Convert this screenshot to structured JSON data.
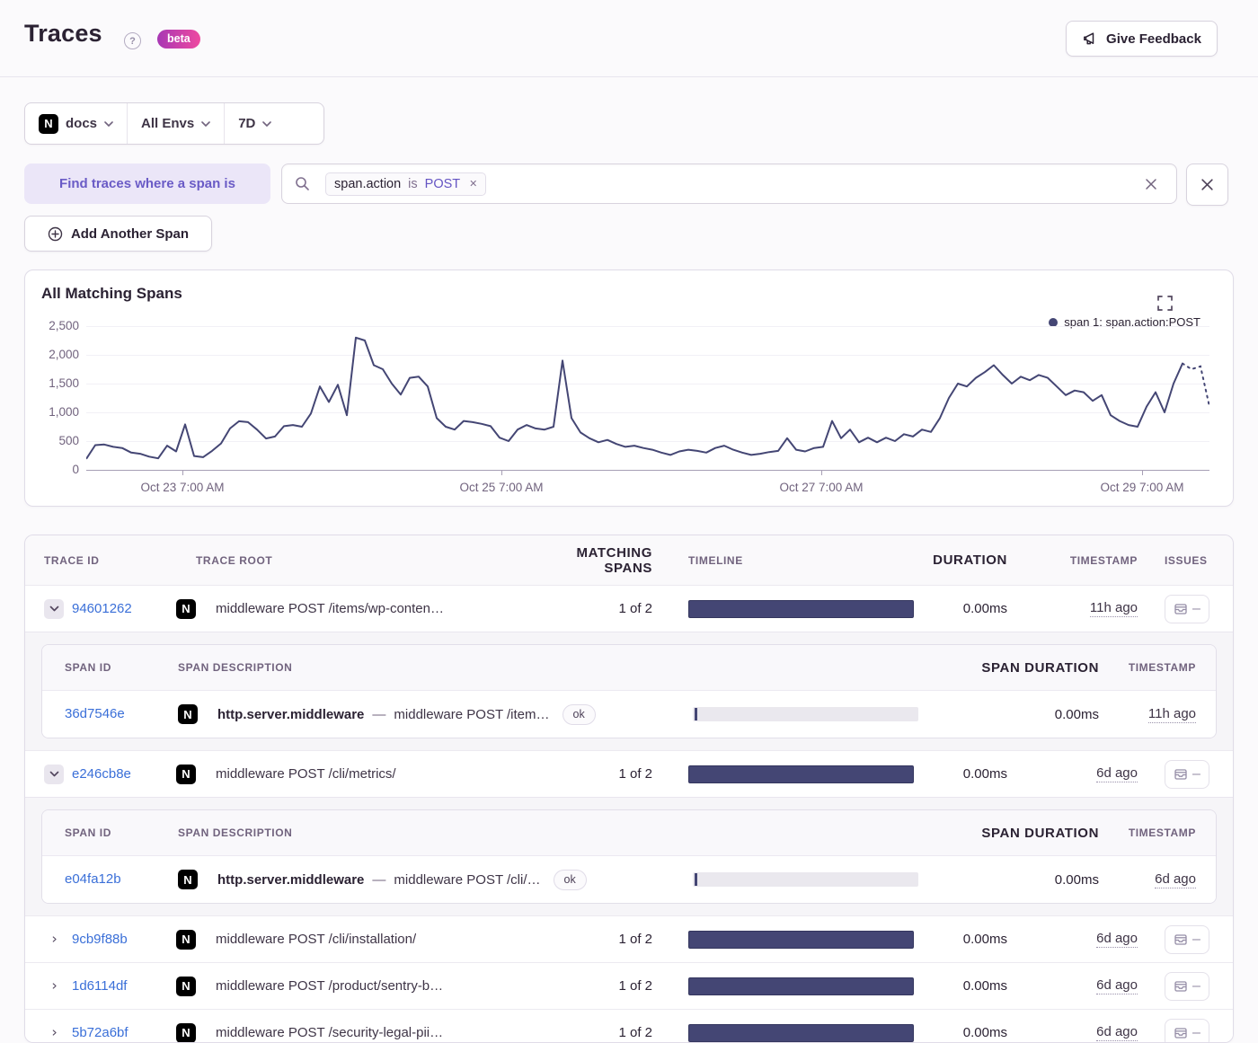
{
  "header": {
    "title": "Traces",
    "beta_label": "beta",
    "feedback_label": "Give Feedback"
  },
  "filters": {
    "project": "docs",
    "environment": "All Envs",
    "period": "7D"
  },
  "span_query": {
    "chip_label": "Find traces where a span is",
    "token": {
      "key": "span.action",
      "op": "is",
      "value": "POST"
    },
    "add_button_label": "Add Another Span"
  },
  "chart": {
    "title": "All Matching Spans",
    "legend_label": "span 1: span.action:POST"
  },
  "chart_data": {
    "type": "line",
    "title": "All Matching Spans",
    "ylim": [
      0,
      2500
    ],
    "grid": "horizontal",
    "legend_position": "top-right",
    "y_ticks": [
      0,
      500,
      1000,
      1500,
      2000,
      2500
    ],
    "y_tick_labels": [
      "0",
      "500",
      "1,000",
      "1,500",
      "2,000",
      "2,500"
    ],
    "x_ticks": [
      {
        "pos": 0.0856,
        "label": "Oct 23 7:00 AM"
      },
      {
        "pos": 0.3696,
        "label": "Oct 25 7:00 AM"
      },
      {
        "pos": 0.6544,
        "label": "Oct 27 7:00 AM"
      },
      {
        "pos": 0.94,
        "label": "Oct 29 7:00 AM"
      }
    ],
    "dashed_from_index": 122,
    "series": [
      {
        "name": "span 1: span.action:POST",
        "color": "#444674",
        "values": [
          190,
          430,
          440,
          400,
          380,
          300,
          280,
          230,
          200,
          420,
          320,
          790,
          240,
          220,
          330,
          460,
          720,
          845,
          830,
          700,
          545,
          580,
          760,
          780,
          750,
          980,
          1450,
          1180,
          1480,
          950,
          2300,
          2250,
          1820,
          1750,
          1500,
          1310,
          1600,
          1620,
          1450,
          900,
          750,
          700,
          850,
          830,
          800,
          760,
          560,
          500,
          700,
          780,
          720,
          700,
          750,
          1900,
          900,
          650,
          550,
          480,
          520,
          450,
          400,
          420,
          380,
          350,
          300,
          260,
          320,
          350,
          330,
          300,
          380,
          420,
          350,
          300,
          260,
          280,
          310,
          330,
          550,
          350,
          320,
          380,
          400,
          850,
          550,
          700,
          480,
          560,
          480,
          560,
          500,
          620,
          580,
          700,
          660,
          900,
          1250,
          1500,
          1450,
          1600,
          1700,
          1820,
          1650,
          1500,
          1620,
          1560,
          1650,
          1600,
          1450,
          1300,
          1380,
          1350,
          1200,
          1300,
          950,
          850,
          780,
          750,
          1100,
          1350,
          1000,
          1500,
          1850,
          1750,
          1800,
          1100
        ]
      }
    ]
  },
  "table": {
    "columns": [
      "TRACE ID",
      "TRACE ROOT",
      "MATCHING SPANS",
      "TIMELINE",
      "DURATION",
      "TIMESTAMP",
      "ISSUES"
    ],
    "sub_columns": [
      "SPAN ID",
      "SPAN DESCRIPTION",
      "SPAN DURATION",
      "TIMESTAMP"
    ],
    "rows": [
      {
        "id": "94601262",
        "expanded": true,
        "root": "middleware POST /items/wp-conten…",
        "matching": "1 of 2",
        "duration": "0.00ms",
        "timestamp": "11h ago",
        "spans": [
          {
            "id": "36d7546e",
            "op": "http.server.middleware",
            "desc": "middleware POST /item…",
            "status": "ok",
            "duration": "0.00ms",
            "timestamp": "11h ago"
          }
        ]
      },
      {
        "id": "e246cb8e",
        "expanded": true,
        "root": "middleware POST /cli/metrics/",
        "matching": "1 of 2",
        "duration": "0.00ms",
        "timestamp": "6d ago",
        "spans": [
          {
            "id": "e04fa12b",
            "op": "http.server.middleware",
            "desc": "middleware POST /cli/…",
            "status": "ok",
            "duration": "0.00ms",
            "timestamp": "6d ago"
          }
        ]
      },
      {
        "id": "9cb9f88b",
        "expanded": false,
        "root": "middleware POST /cli/installation/",
        "matching": "1 of 2",
        "duration": "0.00ms",
        "timestamp": "6d ago",
        "spans": []
      },
      {
        "id": "1d6114df",
        "expanded": false,
        "root": "middleware POST /product/sentry-b…",
        "matching": "1 of 2",
        "duration": "0.00ms",
        "timestamp": "6d ago",
        "spans": []
      },
      {
        "id": "5b72a6bf",
        "expanded": false,
        "root": "middleware POST /security-legal-pii…",
        "matching": "1 of 2",
        "duration": "0.00ms",
        "timestamp": "6d ago",
        "spans": []
      }
    ]
  },
  "icons": {
    "help": "help-icon",
    "feedback": "megaphone-icon",
    "project": "nextjs-logo-icon",
    "dropdown": "chevron-down-icon",
    "search": "search-icon",
    "remove_token": "close-icon",
    "clear_search": "close-icon",
    "close_query": "close-icon",
    "add_span": "circle-plus-icon",
    "expand_chart": "fullscreen-icon",
    "row_expand": "chevron-icon",
    "issues": "archive-icon"
  },
  "colors": {
    "accent_purple": "#6a5bc6",
    "chart_line": "#444674",
    "link_blue": "#3a6fd8",
    "beta_gradient_start": "#a737b4",
    "beta_gradient_end": "#ef4aa0"
  }
}
